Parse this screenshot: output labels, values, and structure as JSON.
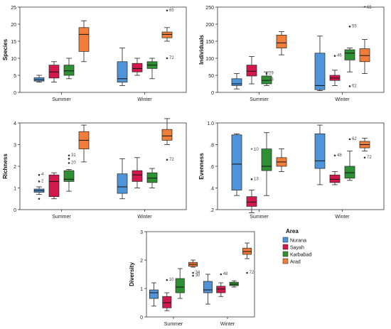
{
  "colors": {
    "Nurana": "#4f94d9",
    "Sayah": "#d11a4b",
    "Karbabad": "#2f8f34",
    "Arad": "#f07d3a"
  },
  "chart_data": [
    {
      "type": "box",
      "ylabel": "Species",
      "categories": [
        "Summer",
        "Winter"
      ],
      "ylim": [
        0,
        25
      ],
      "yticks": [
        0,
        5,
        10,
        15,
        20,
        25
      ],
      "tick_labels": [
        "0",
        "5",
        "10",
        "15",
        "20",
        "25"
      ],
      "series": [
        {
          "name": "Nurana",
          "boxes": [
            {
              "min": 3,
              "q1": 3.3,
              "median": 3.7,
              "q3": 4.3,
              "max": 5
            },
            {
              "min": 2,
              "q1": 3,
              "median": 4,
              "q3": 9,
              "max": 13
            }
          ]
        },
        {
          "name": "Sayah",
          "boxes": [
            {
              "min": 3,
              "q1": 4.2,
              "median": 6,
              "q3": 8,
              "max": 9
            },
            {
              "min": 5,
              "q1": 6,
              "median": 7,
              "q3": 8.5,
              "max": 10
            }
          ]
        },
        {
          "name": "Karbabad",
          "boxes": [
            {
              "min": 4,
              "q1": 5,
              "median": 6.3,
              "q3": 8,
              "max": 10
            },
            {
              "min": 4,
              "q1": 7,
              "median": 8,
              "q3": 9,
              "max": 10
            }
          ]
        },
        {
          "name": "Arad",
          "boxes": [
            {
              "min": 9,
              "q1": 12,
              "median": 17,
              "q3": 19,
              "max": 21
            },
            {
              "min": 15,
              "q1": 16,
              "median": 17,
              "q3": 17.7,
              "max": 19
            }
          ]
        }
      ],
      "outliers": [
        {
          "series": 3,
          "cat": 1,
          "value": 24,
          "label": "65",
          "style": "dot"
        },
        {
          "series": 3,
          "cat": 1,
          "value": 10,
          "label": "72",
          "style": "dot"
        }
      ]
    },
    {
      "type": "box",
      "ylabel": "Individuals",
      "categories": [
        "Summer",
        "Winter"
      ],
      "ylim": [
        0,
        250
      ],
      "yticks": [
        0,
        50,
        100,
        150,
        200,
        250
      ],
      "tick_labels": [
        "0",
        "50",
        "100",
        "150",
        "200",
        "250"
      ],
      "series": [
        {
          "name": "Nurana",
          "boxes": [
            {
              "min": 10,
              "q1": 20,
              "median": 25,
              "q3": 40,
              "max": 55
            },
            {
              "min": 5,
              "q1": 8,
              "median": 20,
              "q3": 115,
              "max": 165
            }
          ]
        },
        {
          "name": "Sayah",
          "boxes": [
            {
              "min": 25,
              "q1": 48,
              "median": 62,
              "q3": 80,
              "max": 105
            },
            {
              "min": 20,
              "q1": 35,
              "median": 42,
              "q3": 50,
              "max": 65
            }
          ]
        },
        {
          "name": "Karbabad",
          "boxes": [
            {
              "min": 20,
              "q1": 25,
              "median": 35,
              "q3": 48,
              "max": 60
            },
            {
              "min": 60,
              "q1": 95,
              "median": 115,
              "q3": 125,
              "max": 130
            }
          ]
        },
        {
          "name": "Arad",
          "boxes": [
            {
              "min": 110,
              "q1": 130,
              "median": 145,
              "q3": 168,
              "max": 178
            },
            {
              "min": 55,
              "q1": 90,
              "median": 108,
              "q3": 128,
              "max": 155
            }
          ]
        }
      ],
      "outliers": [
        {
          "series": 2,
          "cat": 0,
          "value": 55,
          "label": "29",
          "style": "dot"
        },
        {
          "series": 2,
          "cat": 0,
          "value": 55,
          "label": "28",
          "style": "none",
          "dy": 9
        },
        {
          "series": 1,
          "cat": 1,
          "value": 107,
          "label": "46",
          "style": "dot"
        },
        {
          "series": 2,
          "cat": 1,
          "value": 193,
          "label": "55",
          "style": "dot"
        },
        {
          "series": 2,
          "cat": 1,
          "value": 18,
          "label": "62",
          "style": "dot"
        },
        {
          "series": 3,
          "cat": 1,
          "value": 248,
          "label": "65",
          "style": "star"
        }
      ]
    },
    {
      "type": "box",
      "ylabel": "Richness",
      "categories": [
        "Summer",
        "Winter"
      ],
      "ylim": [
        0,
        4
      ],
      "yticks": [
        0,
        1,
        2,
        3,
        4
      ],
      "tick_labels": [
        "0",
        "1",
        "2",
        "3",
        "4"
      ],
      "series": [
        {
          "name": "Nurana",
          "boxes": [
            {
              "min": 0.7,
              "q1": 0.8,
              "median": 0.88,
              "q3": 0.95,
              "max": 1.05
            },
            {
              "min": 0.5,
              "q1": 0.75,
              "median": 1.05,
              "q3": 1.65,
              "max": 2.35
            }
          ]
        },
        {
          "name": "Sayah",
          "boxes": [
            {
              "min": 0.5,
              "q1": 0.6,
              "median": 1.3,
              "q3": 1.6,
              "max": 1.7
            },
            {
              "min": 1.0,
              "q1": 1.3,
              "median": 1.6,
              "q3": 1.8,
              "max": 2.4
            }
          ]
        },
        {
          "name": "Karbabad",
          "boxes": [
            {
              "min": 0.85,
              "q1": 1.3,
              "median": 1.4,
              "q3": 1.8,
              "max": 1.85
            },
            {
              "min": 1.0,
              "q1": 1.25,
              "median": 1.45,
              "q3": 1.7,
              "max": 1.9
            }
          ]
        },
        {
          "name": "Arad",
          "boxes": [
            {
              "min": 2.2,
              "q1": 2.8,
              "median": 3.2,
              "q3": 3.6,
              "max": 3.9
            },
            {
              "min": 3.0,
              "q1": 3.2,
              "median": 3.4,
              "q3": 3.7,
              "max": 4.2
            }
          ]
        }
      ],
      "outliers": [
        {
          "series": 0,
          "cat": 0,
          "value": 1.6,
          "label": "4",
          "style": "dot"
        },
        {
          "series": 0,
          "cat": 0,
          "value": 1.3,
          "label": "2",
          "style": "dot"
        },
        {
          "series": 0,
          "cat": 0,
          "value": 0.5,
          "label": "",
          "style": "dot"
        },
        {
          "series": 2,
          "cat": 0,
          "value": 2.5,
          "label": "31",
          "style": "dot"
        },
        {
          "series": 2,
          "cat": 0,
          "value": 2.35,
          "label": "",
          "style": "dot"
        },
        {
          "series": 2,
          "cat": 0,
          "value": 2.15,
          "label": "20",
          "style": "dot"
        },
        {
          "series": 3,
          "cat": 1,
          "value": 2.3,
          "label": "72",
          "style": "dot"
        }
      ]
    },
    {
      "type": "box",
      "ylabel": "Evenness",
      "categories": [
        "Summer",
        "Winter"
      ],
      "ylim": [
        0.2,
        1.0
      ],
      "yticks": [
        0.2,
        0.4,
        0.6,
        0.8,
        1.0
      ],
      "tick_labels": [
        ".2",
        ".4",
        ".6",
        ".8",
        "1.0"
      ],
      "series": [
        {
          "name": "Nurana",
          "boxes": [
            {
              "min": 0.33,
              "q1": 0.38,
              "median": 0.62,
              "q3": 0.89,
              "max": 0.9
            },
            {
              "min": 0.43,
              "q1": 0.58,
              "median": 0.65,
              "q3": 0.9,
              "max": 0.98
            }
          ]
        },
        {
          "name": "Sayah",
          "boxes": [
            {
              "min": 0.17,
              "q1": 0.23,
              "median": 0.27,
              "q3": 0.32,
              "max": 0.38
            },
            {
              "min": 0.43,
              "q1": 0.45,
              "median": 0.48,
              "q3": 0.52,
              "max": 0.55
            }
          ]
        },
        {
          "name": "Karbabad",
          "boxes": [
            {
              "min": 0.33,
              "q1": 0.56,
              "median": 0.6,
              "q3": 0.76,
              "max": 0.91
            },
            {
              "min": 0.47,
              "q1": 0.49,
              "median": 0.54,
              "q3": 0.6,
              "max": 0.74
            }
          ]
        },
        {
          "name": "Arad",
          "boxes": [
            {
              "min": 0.55,
              "q1": 0.6,
              "median": 0.64,
              "q3": 0.68,
              "max": 0.76
            },
            {
              "min": 0.74,
              "q1": 0.77,
              "median": 0.8,
              "q3": 0.83,
              "max": 0.86
            }
          ]
        }
      ],
      "outliers": [
        {
          "series": 1,
          "cat": 0,
          "value": 0.75,
          "label": "10",
          "style": "star"
        },
        {
          "series": 1,
          "cat": 0,
          "value": 0.48,
          "label": "13",
          "style": "dot"
        },
        {
          "series": 1,
          "cat": 1,
          "value": 0.7,
          "label": "48",
          "style": "dot"
        },
        {
          "series": 2,
          "cat": 1,
          "value": 0.85,
          "label": "62",
          "style": "dot"
        },
        {
          "series": 3,
          "cat": 1,
          "value": 0.68,
          "label": "72",
          "style": "dot"
        }
      ]
    },
    {
      "type": "box",
      "ylabel": "Diversity",
      "categories": [
        "Summer",
        "Winter"
      ],
      "ylim": [
        0,
        3
      ],
      "yticks": [
        0,
        1,
        2,
        3
      ],
      "tick_labels": [
        "0",
        "1",
        "2",
        "3"
      ],
      "series": [
        {
          "name": "Nurana",
          "boxes": [
            {
              "min": 0.38,
              "q1": 0.65,
              "median": 0.85,
              "q3": 0.95,
              "max": 1.2
            },
            {
              "min": 0.45,
              "q1": 0.85,
              "median": 0.95,
              "q3": 1.25,
              "max": 1.5
            }
          ]
        },
        {
          "name": "Sayah",
          "boxes": [
            {
              "min": 0.22,
              "q1": 0.32,
              "median": 0.5,
              "q3": 0.72,
              "max": 0.85
            },
            {
              "min": 0.72,
              "q1": 0.85,
              "median": 0.98,
              "q3": 1.08,
              "max": 1.2
            }
          ]
        },
        {
          "name": "Karbabad",
          "boxes": [
            {
              "min": 0.65,
              "q1": 0.85,
              "median": 1.05,
              "q3": 1.35,
              "max": 1.7
            },
            {
              "min": 1.05,
              "q1": 1.1,
              "median": 1.15,
              "q3": 1.22,
              "max": 1.27
            }
          ]
        },
        {
          "name": "Arad",
          "boxes": [
            {
              "min": 1.75,
              "q1": 1.78,
              "median": 1.85,
              "q3": 1.92,
              "max": 2.0
            },
            {
              "min": 2.05,
              "q1": 2.2,
              "median": 2.3,
              "q3": 2.42,
              "max": 2.6
            }
          ]
        }
      ],
      "outliers": [
        {
          "series": 1,
          "cat": 0,
          "value": 1.3,
          "label": "10",
          "style": "dot"
        },
        {
          "series": 3,
          "cat": 0,
          "value": 1.55,
          "label": "34",
          "style": "dot"
        },
        {
          "series": 3,
          "cat": 0,
          "value": 1.45,
          "label": "30",
          "style": "dot"
        },
        {
          "series": 1,
          "cat": 1,
          "value": 1.5,
          "label": "48",
          "style": "dot"
        },
        {
          "series": 3,
          "cat": 1,
          "value": 1.55,
          "label": "72",
          "style": "dot"
        }
      ]
    }
  ],
  "legend": {
    "title": "Area",
    "items": [
      "Nurana",
      "Sayah",
      "Karbabad",
      "Arad"
    ]
  }
}
